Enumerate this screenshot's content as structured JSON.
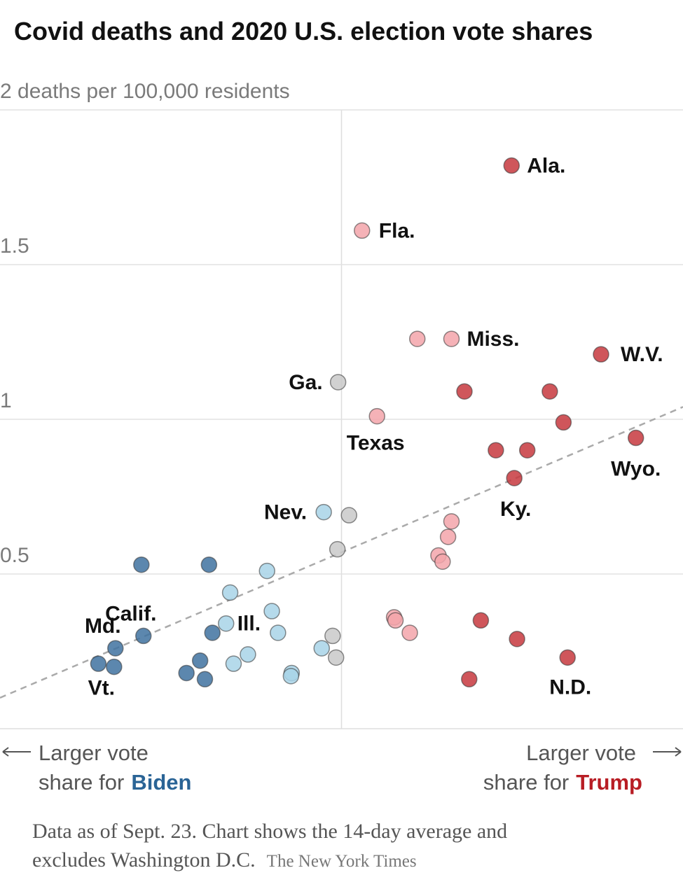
{
  "chart_data": {
    "type": "scatter",
    "title": "Covid deaths and 2020 U.S. election vote shares",
    "xlim": [
      -50,
      50
    ],
    "ylim": [
      0,
      2
    ],
    "yticks": [
      {
        "value": 2,
        "label": "2 deaths per 100,000 residents"
      },
      1.5,
      1,
      0.5
    ],
    "grid": true,
    "series": [
      {
        "color": "#c7383e",
        "x": [
          24.9,
          38.0,
          18.0,
          30.5,
          32.5,
          43.1,
          22.6,
          27.2,
          25.3,
          20.4,
          25.7,
          33.1,
          18.7
        ],
        "values": [
          1.82,
          1.21,
          1.09,
          1.09,
          0.99,
          0.94,
          0.9,
          0.9,
          0.81,
          0.35,
          0.29,
          0.23,
          0.16
        ],
        "labels": [
          "Ala.",
          "W.V.",
          null,
          null,
          null,
          "Wyo.",
          null,
          null,
          "Ky.",
          null,
          null,
          "N.D.",
          null
        ]
      },
      {
        "color": "#f3a5aa",
        "x": [
          3.0,
          11.1,
          16.1,
          5.2,
          16.1,
          15.6,
          14.2,
          14.8,
          7.7,
          7.9,
          10.0
        ],
        "values": [
          1.61,
          1.26,
          1.26,
          1.01,
          0.67,
          0.62,
          0.56,
          0.54,
          0.36,
          0.35,
          0.31
        ],
        "labels": [
          "Fla.",
          null,
          "Miss.",
          "Texas",
          null,
          null,
          null,
          null,
          null,
          null,
          null
        ]
      },
      {
        "color": "#c9c9c9",
        "x": [
          -0.5,
          1.1,
          -0.6,
          -1.3,
          -0.8
        ],
        "values": [
          1.12,
          0.69,
          0.58,
          0.3,
          0.23
        ],
        "labels": [
          "Ga.",
          null,
          null,
          null,
          null
        ]
      },
      {
        "color": "#a8d4e8",
        "x": [
          -2.6,
          -10.9,
          -16.3,
          -10.2,
          -16.9,
          -9.3,
          -2.9,
          -13.7,
          -15.8,
          -7.3,
          -7.4
        ],
        "values": [
          0.7,
          0.51,
          0.44,
          0.38,
          0.34,
          0.31,
          0.26,
          0.24,
          0.21,
          0.18,
          0.17
        ],
        "labels": [
          "Nev.",
          null,
          null,
          null,
          "Ill.",
          null,
          null,
          null,
          null,
          null,
          null
        ]
      },
      {
        "color": "#3f72a0",
        "x": [
          -29.3,
          -19.4,
          -29.0,
          -18.9,
          -33.1,
          -35.6,
          -33.3,
          -20.7,
          -22.7,
          -20.0
        ],
        "values": [
          0.53,
          0.53,
          0.3,
          0.31,
          0.26,
          0.21,
          0.2,
          0.22,
          0.18,
          0.16
        ],
        "labels": [
          null,
          null,
          "Calif.",
          null,
          "Md.",
          null,
          "Vt.",
          null,
          null,
          null
        ]
      }
    ],
    "trendline": {
      "x": [
        -50,
        50
      ],
      "y": [
        0.1,
        1.04
      ]
    },
    "left_note": {
      "line1": "Larger vote",
      "line2": "share for",
      "highlight": "Biden"
    },
    "right_note": {
      "line1": "Larger vote",
      "line2": "share for",
      "highlight": "Trump"
    },
    "note": [
      "Data as of Sept. 23. Chart shows the 14-day average and",
      "excludes Washington D.C."
    ],
    "source": "The New York Times"
  }
}
